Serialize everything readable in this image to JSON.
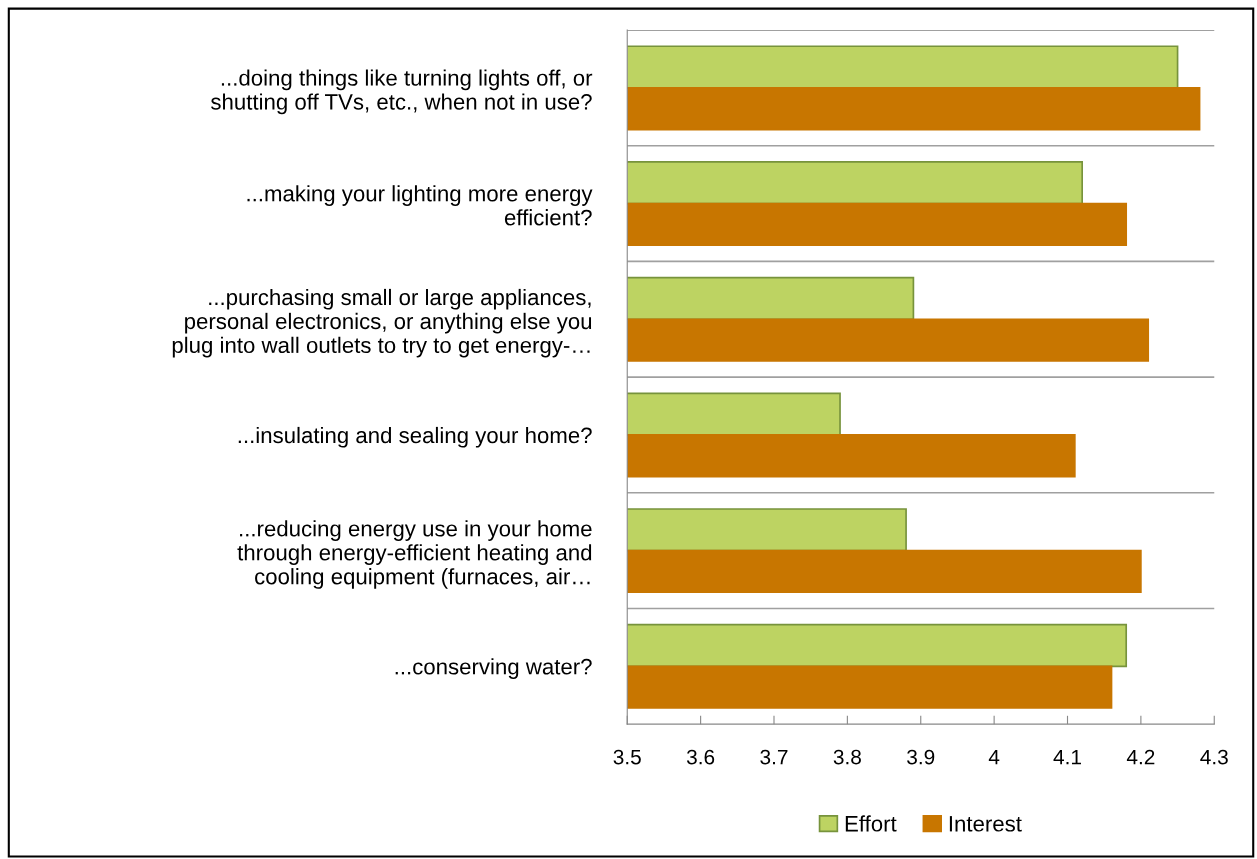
{
  "chart_data": {
    "type": "bar",
    "orientation": "horizontal",
    "categories": [
      "...doing things like turning lights off, or\nshutting off TVs, etc., when not in use?",
      "...making your lighting more energy\nefficient?",
      "...purchasing small or large appliances,\npersonal electronics, or anything else you\nplug into wall outlets to try to get energy-…",
      "...insulating and sealing your home?",
      "...reducing energy use in your home\nthrough energy-efficient heating and\ncooling equipment (furnaces, air…",
      "...conserving water?"
    ],
    "series": [
      {
        "name": "Effort",
        "color": "#bdd362",
        "values": [
          4.25,
          4.12,
          3.89,
          3.79,
          3.88,
          4.18
        ]
      },
      {
        "name": "Interest",
        "color": "#c87600",
        "values": [
          4.28,
          4.18,
          4.21,
          4.11,
          4.2,
          4.16
        ]
      }
    ],
    "xlim": [
      3.5,
      4.3
    ],
    "xticks": [
      3.5,
      3.6,
      3.7,
      3.8,
      3.9,
      4,
      4.1,
      4.2,
      4.3
    ],
    "grid": "y",
    "legend": "bottom"
  }
}
